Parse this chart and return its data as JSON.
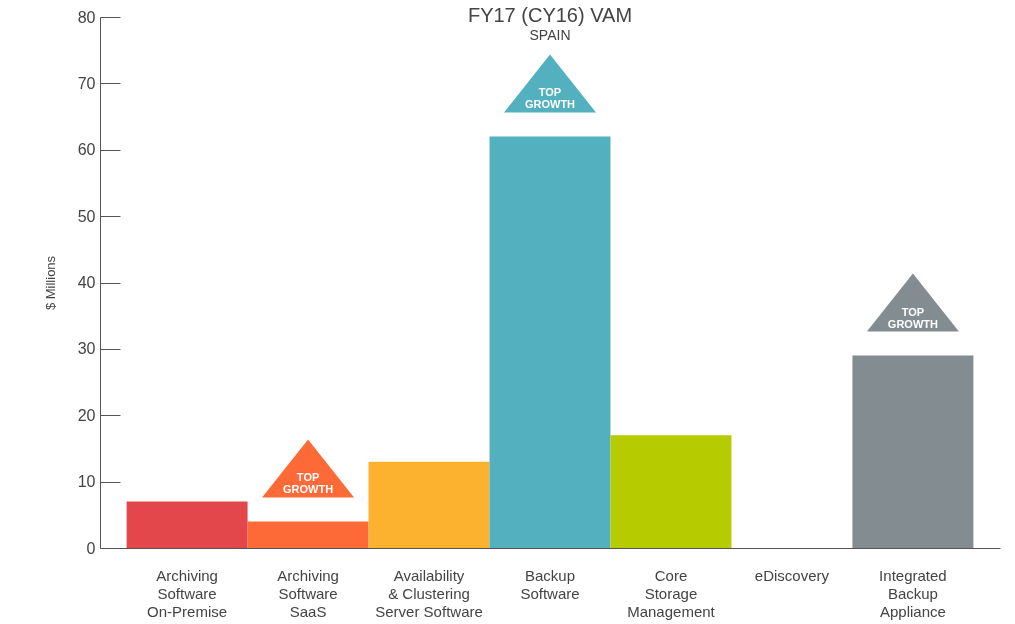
{
  "chart_data": {
    "type": "bar",
    "title": "FY17 (CY16) VAM",
    "subtitle": "SPAIN",
    "ylabel": "$ Millions",
    "categories": [
      "Archiving\nSoftware\nOn-Premise",
      "Archiving\nSoftware\nSaaS",
      "Availability\n& Clustering\nServer Software",
      "Backup\nSoftware",
      "Core\nStorage\nManagement",
      "eDiscovery",
      "Integrated\nBackup\nAppliance"
    ],
    "values": [
      7,
      4,
      13,
      62,
      17,
      0,
      29
    ],
    "colors": [
      "#e3474b",
      "#fd6a37",
      "#fdb22f",
      "#52b0bf",
      "#b7cc00",
      "#9e9e9e",
      "#828c91"
    ],
    "ylim": [
      0,
      80
    ],
    "yticks": [
      0,
      10,
      20,
      30,
      40,
      50,
      60,
      70,
      80
    ],
    "grid": false,
    "annotations": [
      "TOP\nGROWTH",
      "TOP\nGROWTH",
      "TOP\nGROWTH"
    ]
  }
}
